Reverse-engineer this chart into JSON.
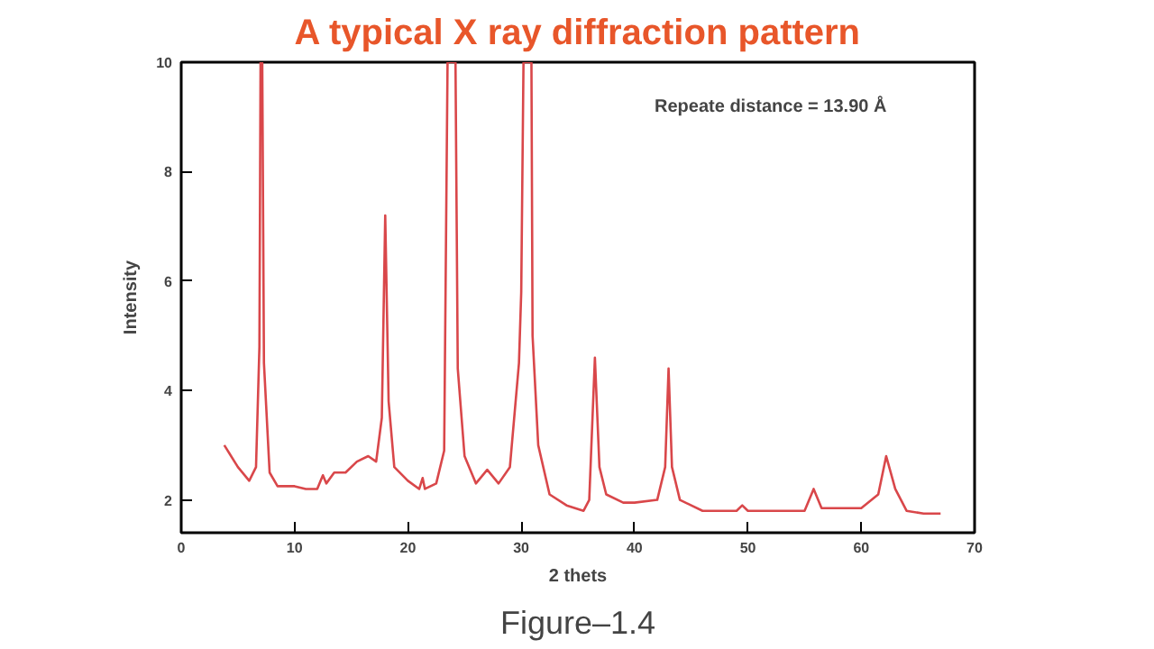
{
  "chart_data": {
    "type": "line",
    "title": "A typical X ray diffraction pattern",
    "xlabel": "2 thets",
    "ylabel": "Intensity",
    "annotations": [
      "Repeate distance = 13.90 Å",
      "Figure–1.4"
    ],
    "xlim": [
      0,
      70
    ],
    "xticks": [
      0,
      10,
      20,
      30,
      40,
      50,
      60,
      70
    ],
    "ylim": [
      1.4,
      10
    ],
    "yticks": [
      2,
      4,
      6,
      8,
      10
    ],
    "grid": false,
    "marker": "none",
    "line_style": "solid",
    "series": [
      {
        "color": "#d9474a",
        "x": [
          3.8,
          5,
          6,
          6.6,
          6.9,
          7.0,
          7.15,
          7.3,
          7.8,
          8.5,
          10,
          11,
          12,
          12.5,
          12.8,
          13.5,
          14.5,
          15.5,
          16.5,
          17.2,
          17.7,
          18.0,
          18.3,
          18.8,
          20,
          21,
          21.3,
          21.5,
          22.5,
          23.2,
          23.5,
          24.2,
          24.4,
          25,
          26,
          27,
          28,
          29,
          29.8,
          30.0,
          30.2,
          30.9,
          31.0,
          31.5,
          32.5,
          34,
          35.5,
          36.0,
          36.5,
          36.9,
          37.5,
          39,
          40,
          42,
          42.7,
          43.0,
          43.3,
          44,
          46,
          49,
          49.5,
          50,
          55,
          55.8,
          56.5,
          58,
          60,
          61.5,
          62.2,
          63,
          64,
          65.5,
          67
        ],
        "values": [
          3.0,
          2.6,
          2.35,
          2.6,
          4.8,
          10,
          10,
          4.5,
          2.5,
          2.25,
          2.25,
          2.2,
          2.2,
          2.45,
          2.3,
          2.5,
          2.5,
          2.7,
          2.8,
          2.7,
          3.5,
          7.2,
          3.8,
          2.6,
          2.35,
          2.2,
          2.4,
          2.2,
          2.3,
          2.9,
          10,
          10,
          4.4,
          2.8,
          2.3,
          2.55,
          2.3,
          2.6,
          4.5,
          5.8,
          10,
          10,
          5.0,
          3.0,
          2.1,
          1.9,
          1.8,
          2.0,
          4.6,
          2.6,
          2.1,
          1.95,
          1.95,
          2.0,
          2.6,
          4.4,
          2.6,
          2.0,
          1.8,
          1.8,
          1.9,
          1.8,
          1.8,
          2.2,
          1.85,
          1.85,
          1.85,
          2.1,
          2.8,
          2.2,
          1.8,
          1.75,
          1.75
        ]
      }
    ]
  }
}
